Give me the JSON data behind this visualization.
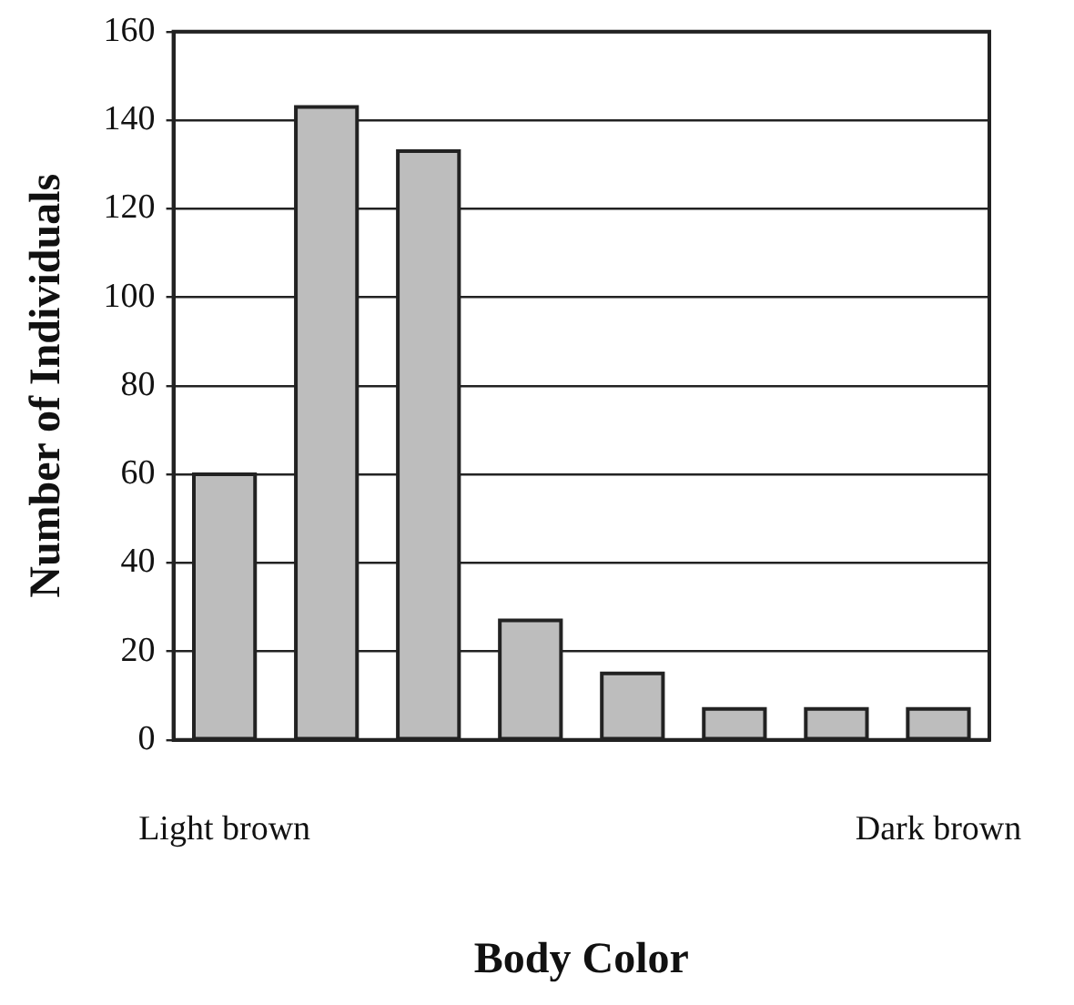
{
  "chart_data": {
    "type": "bar",
    "xlabel": "Body Color",
    "ylabel": "Number of Individuals",
    "categories": [
      "Light brown",
      null,
      null,
      null,
      null,
      null,
      null,
      "Dark brown"
    ],
    "values": [
      60,
      143,
      133,
      27,
      15,
      7,
      7,
      7
    ],
    "color": "#bdbdbd",
    "ylim": [
      0,
      160
    ],
    "yticks": [
      0,
      20,
      40,
      60,
      80,
      100,
      120,
      140,
      160
    ],
    "grid": "y",
    "legend": false
  }
}
